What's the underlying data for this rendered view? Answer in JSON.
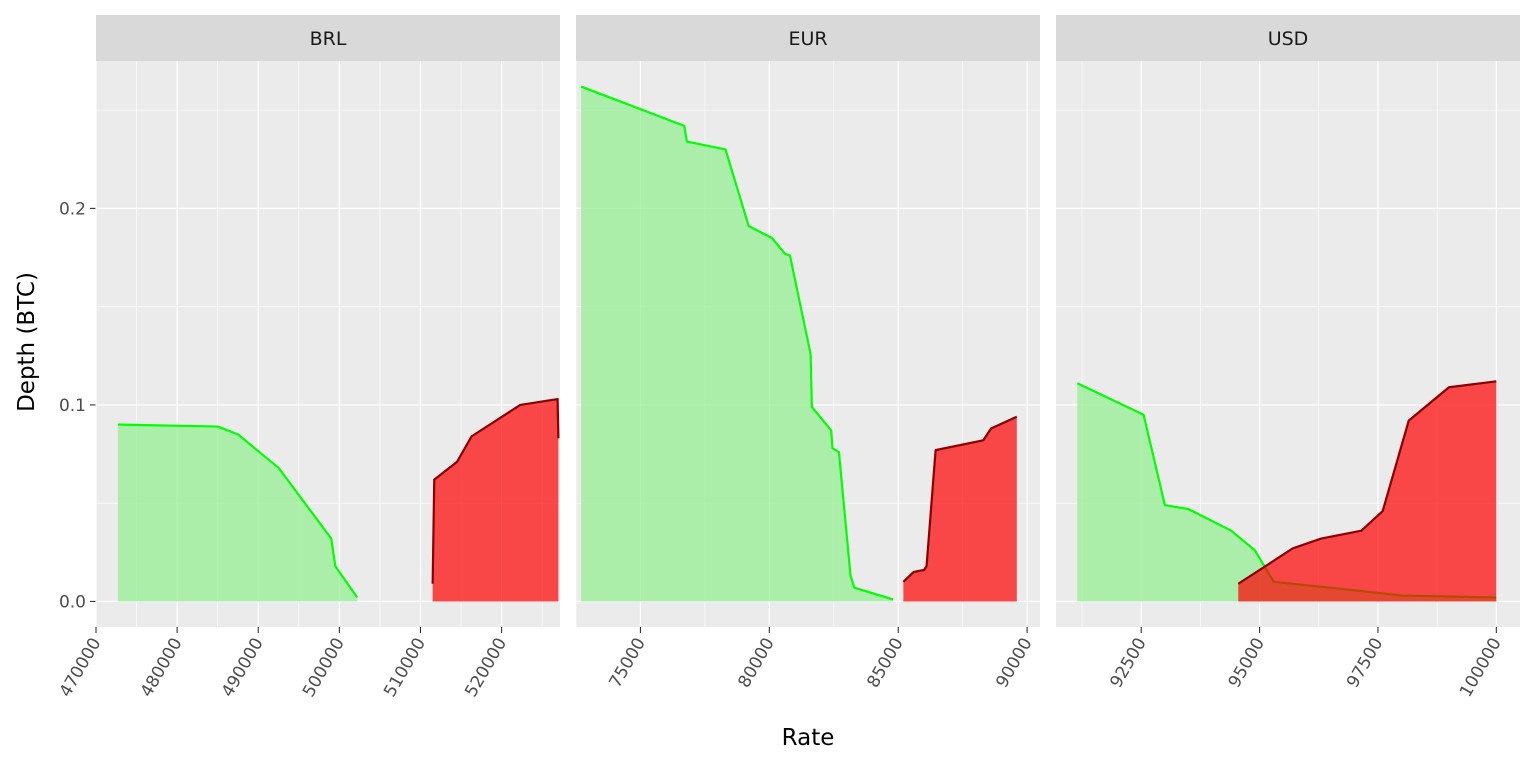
{
  "chart_data": {
    "type": "area",
    "xlabel": "Rate",
    "ylabel": "Depth (BTC)",
    "ylim": [
      -0.013,
      0.275
    ],
    "y_ticks": [
      0.0,
      0.1,
      0.2
    ],
    "y_tick_labels": [
      "0.0",
      "0.1",
      "0.2"
    ],
    "grid": true,
    "legend": "none",
    "colors": {
      "panel_bg": "#EBEBEB",
      "grid": "#FFFFFF",
      "strip_bg": "#D9D9D9",
      "bid_fill": "#90EE90",
      "bid_line": "#00FF00",
      "ask_fill": "#FF0000",
      "ask_line": "#8B0000"
    },
    "facets": [
      {
        "label": "BRL",
        "xlim": [
          470000,
          527200
        ],
        "x_ticks": [
          470000,
          480000,
          490000,
          500000,
          510000,
          520000
        ],
        "x_tick_labels": [
          "470000",
          "480000",
          "490000",
          "500000",
          "510000",
          "520000"
        ],
        "bids": {
          "x": [
            472700,
            485000,
            487500,
            492500,
            499000,
            499500,
            502200
          ],
          "y": [
            0.09,
            0.089,
            0.085,
            0.068,
            0.032,
            0.018,
            0.002
          ]
        },
        "asks": {
          "x": [
            511500,
            511700,
            514500,
            516300,
            522300,
            526900,
            527000
          ],
          "y": [
            0.009,
            0.062,
            0.071,
            0.084,
            0.1,
            0.103,
            0.083
          ]
        }
      },
      {
        "label": "EUR",
        "xlim": [
          72500,
          90500
        ],
        "x_ticks": [
          75000,
          80000,
          85000,
          90000
        ],
        "x_tick_labels": [
          "75000",
          "80000",
          "85000",
          "90000"
        ],
        "bids": {
          "x": [
            72700,
            76700,
            76800,
            78300,
            79200,
            80100,
            80600,
            80800,
            81600,
            81650,
            82400,
            82450,
            82700,
            82750,
            83150,
            83300,
            84800
          ],
          "y": [
            0.262,
            0.242,
            0.234,
            0.23,
            0.191,
            0.185,
            0.177,
            0.176,
            0.126,
            0.099,
            0.087,
            0.078,
            0.076,
            0.069,
            0.013,
            0.007,
            0.001
          ]
        },
        "asks": {
          "x": [
            85200,
            85600,
            86000,
            86100,
            86450,
            88300,
            88600,
            89600
          ],
          "y": [
            0.01,
            0.015,
            0.016,
            0.018,
            0.077,
            0.082,
            0.088,
            0.094
          ]
        }
      },
      {
        "label": "USD",
        "xlim": [
          90700,
          100500
        ],
        "x_ticks": [
          92500,
          95000,
          97500,
          100000
        ],
        "x_tick_labels": [
          "92500",
          "95000",
          "97500",
          "100000"
        ],
        "bids": {
          "x": [
            91150,
            92550,
            93000,
            93500,
            94400,
            94900,
            95300,
            96500,
            98000,
            100000
          ],
          "y": [
            0.111,
            0.095,
            0.049,
            0.047,
            0.036,
            0.026,
            0.01,
            0.007,
            0.003,
            0.002
          ]
        },
        "asks": {
          "x": [
            94550,
            95700,
            96300,
            97150,
            97600,
            98150,
            99000,
            100000
          ],
          "y": [
            0.009,
            0.027,
            0.032,
            0.036,
            0.046,
            0.092,
            0.109,
            0.112
          ]
        }
      }
    ]
  }
}
